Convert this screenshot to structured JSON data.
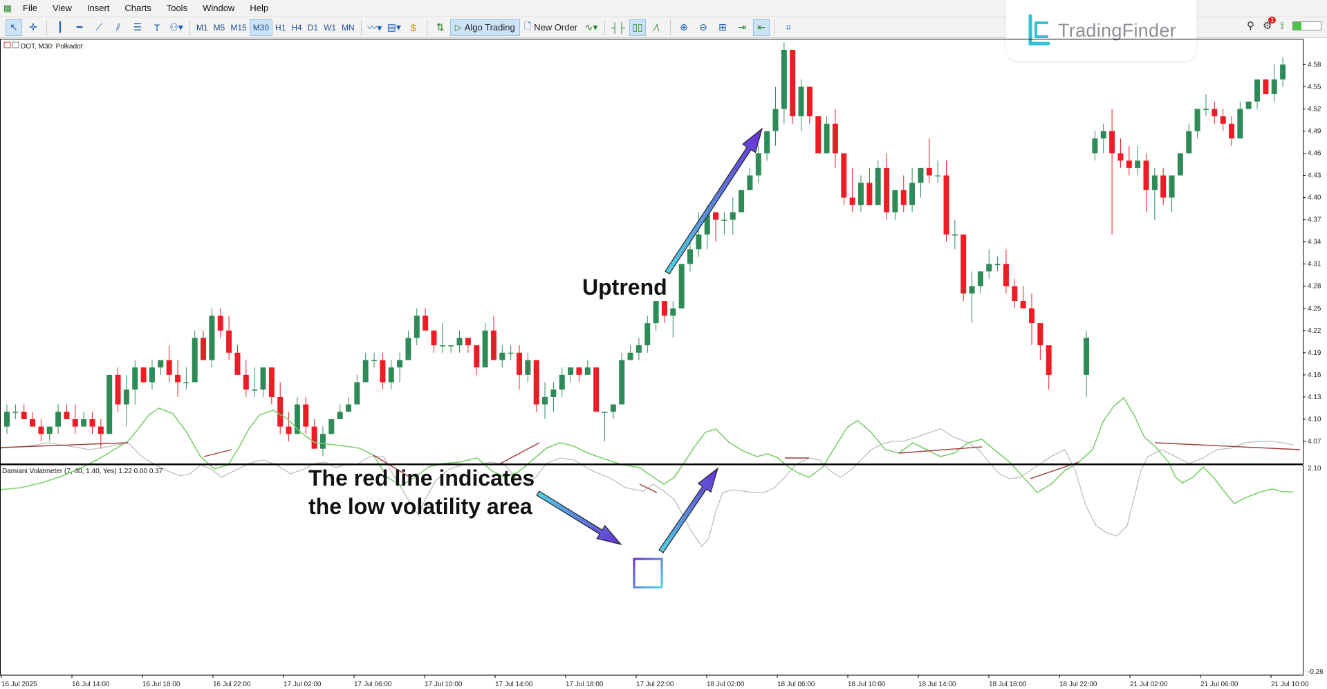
{
  "menu": {
    "items": [
      "File",
      "View",
      "Insert",
      "Charts",
      "Tools",
      "Window",
      "Help"
    ]
  },
  "toolbar": {
    "timeframes": [
      "M1",
      "M5",
      "M15",
      "M30",
      "H1",
      "H4",
      "D1",
      "W1",
      "MN"
    ],
    "active_timeframe": "M30",
    "algo_trading_label": "Algo Trading",
    "new_order_label": "New Order"
  },
  "logo": {
    "text": "TradingFinder"
  },
  "notification_count": "1",
  "chart": {
    "symbol_label": "DOT, M30: Polkadot",
    "price_axis": [
      "4.58",
      "4.55",
      "4.52",
      "4.49",
      "4.46",
      "4.43",
      "4.40",
      "4.37",
      "4.34",
      "4.31",
      "4.28",
      "4.25",
      "4.22",
      "4.19",
      "4.16",
      "4.13",
      "4.10",
      "4.07"
    ],
    "indicator_label": "Damiani Volatmeter (7, 40, 1.40, Yes) 1.22 0.00 0.37",
    "indicator_axis": [
      "2.10",
      "-0.26"
    ],
    "time_axis": [
      "16 Jul 2025",
      "16 Jul 14:00",
      "16 Jul 18:00",
      "16 Jul 22:00",
      "17 Jul 02:00",
      "17 Jul 06:00",
      "17 Jul 10:00",
      "17 Jul 14:00",
      "17 Jul 18:00",
      "17 Jul 22:00",
      "18 Jul 02:00",
      "18 Jul 06:00",
      "18 Jul 10:00",
      "18 Jul 14:00",
      "18 Jul 18:00",
      "18 Jul 22:00",
      "21 Jul 02:00",
      "21 Jul 06:00",
      "21 Jul 10:00"
    ]
  },
  "annotations": {
    "uptrend": "Uptrend",
    "note_line1": "The red line indicates",
    "note_line2": "the low volatility area"
  },
  "colors": {
    "bull": "#2e8b57",
    "bear": "#ee1c25",
    "volatility_line": "#7ad06a",
    "threshold_line": "#f4a8a8",
    "anti_line": "#bdbdbd",
    "low_vol_line": "#9c3b3b",
    "arrow_start": "#4ed6e6",
    "arrow_end": "#6a2fd4"
  },
  "chart_data": {
    "type": "candlestick",
    "symbol": "DOT",
    "timeframe": "M30",
    "candles": [
      [
        4.09,
        4.12,
        4.08,
        4.11
      ],
      [
        4.11,
        4.12,
        4.1,
        4.11
      ],
      [
        4.11,
        4.12,
        4.1,
        4.1
      ],
      [
        4.1,
        4.11,
        4.09,
        4.09
      ],
      [
        4.09,
        4.1,
        4.07,
        4.08
      ],
      [
        4.08,
        4.09,
        4.07,
        4.09
      ],
      [
        4.09,
        4.12,
        4.08,
        4.11
      ],
      [
        4.11,
        4.12,
        4.1,
        4.1
      ],
      [
        4.1,
        4.12,
        4.08,
        4.09
      ],
      [
        4.09,
        4.11,
        4.09,
        4.1
      ],
      [
        4.1,
        4.11,
        4.08,
        4.09
      ],
      [
        4.09,
        4.1,
        4.06,
        4.08
      ],
      [
        4.08,
        4.16,
        4.08,
        4.16
      ],
      [
        4.16,
        4.17,
        4.11,
        4.12
      ],
      [
        4.12,
        4.16,
        4.09,
        4.14
      ],
      [
        4.14,
        4.18,
        4.12,
        4.17
      ],
      [
        4.17,
        4.17,
        4.15,
        4.15
      ],
      [
        4.15,
        4.18,
        4.14,
        4.17
      ],
      [
        4.17,
        4.18,
        4.16,
        4.18
      ],
      [
        4.18,
        4.2,
        4.15,
        4.16
      ],
      [
        4.16,
        4.18,
        4.13,
        4.15
      ],
      [
        4.15,
        4.17,
        4.14,
        4.15
      ],
      [
        4.15,
        4.22,
        4.15,
        4.21
      ],
      [
        4.21,
        4.22,
        4.18,
        4.18
      ],
      [
        4.18,
        4.25,
        4.17,
        4.24
      ],
      [
        4.24,
        4.25,
        4.21,
        4.22
      ],
      [
        4.22,
        4.24,
        4.18,
        4.19
      ],
      [
        4.19,
        4.2,
        4.16,
        4.16
      ],
      [
        4.16,
        4.18,
        4.13,
        4.14
      ],
      [
        4.14,
        4.17,
        4.13,
        4.14
      ],
      [
        4.14,
        4.17,
        4.13,
        4.17
      ],
      [
        4.17,
        4.17,
        4.12,
        4.13
      ],
      [
        4.13,
        4.15,
        4.08,
        4.09
      ],
      [
        4.09,
        4.11,
        4.07,
        4.08
      ],
      [
        4.08,
        4.13,
        4.08,
        4.12
      ],
      [
        4.12,
        4.13,
        4.08,
        4.09
      ],
      [
        4.09,
        4.1,
        4.06,
        4.06
      ],
      [
        4.06,
        4.09,
        4.05,
        4.08
      ],
      [
        4.08,
        4.1,
        4.08,
        4.1
      ],
      [
        4.1,
        4.12,
        4.1,
        4.11
      ],
      [
        4.11,
        4.13,
        4.11,
        4.12
      ],
      [
        4.12,
        4.16,
        4.12,
        4.15
      ],
      [
        4.15,
        4.19,
        4.15,
        4.18
      ],
      [
        4.18,
        4.19,
        4.17,
        4.18
      ],
      [
        4.18,
        4.19,
        4.14,
        4.15
      ],
      [
        4.15,
        4.18,
        4.14,
        4.17
      ],
      [
        4.17,
        4.19,
        4.15,
        4.18
      ],
      [
        4.18,
        4.22,
        4.18,
        4.21
      ],
      [
        4.21,
        4.25,
        4.2,
        4.24
      ],
      [
        4.24,
        4.25,
        4.22,
        4.22
      ],
      [
        4.22,
        4.22,
        4.19,
        4.2
      ],
      [
        4.2,
        4.23,
        4.19,
        4.2
      ],
      [
        4.2,
        4.2,
        4.19,
        4.2
      ],
      [
        4.2,
        4.22,
        4.19,
        4.21
      ],
      [
        4.21,
        4.21,
        4.19,
        4.2
      ],
      [
        4.2,
        4.2,
        4.16,
        4.17
      ],
      [
        4.17,
        4.23,
        4.17,
        4.22
      ],
      [
        4.22,
        4.24,
        4.18,
        4.18
      ],
      [
        4.18,
        4.2,
        4.17,
        4.19
      ],
      [
        4.19,
        4.2,
        4.18,
        4.19
      ],
      [
        4.19,
        4.2,
        4.14,
        4.16
      ],
      [
        4.16,
        4.19,
        4.15,
        4.18
      ],
      [
        4.18,
        4.18,
        4.11,
        4.12
      ],
      [
        4.12,
        4.15,
        4.1,
        4.13
      ],
      [
        4.13,
        4.15,
        4.11,
        4.14
      ],
      [
        4.14,
        4.17,
        4.13,
        4.16
      ],
      [
        4.16,
        4.17,
        4.15,
        4.17
      ],
      [
        4.17,
        4.17,
        4.15,
        4.16
      ],
      [
        4.16,
        4.18,
        4.16,
        4.17
      ],
      [
        4.17,
        4.17,
        4.11,
        4.11
      ],
      [
        4.11,
        4.11,
        4.07,
        4.11
      ],
      [
        4.11,
        4.12,
        4.1,
        4.12
      ],
      [
        4.12,
        4.19,
        4.12,
        4.18
      ],
      [
        4.18,
        4.2,
        4.18,
        4.19
      ],
      [
        4.19,
        4.21,
        4.18,
        4.2
      ],
      [
        4.2,
        4.24,
        4.19,
        4.23
      ],
      [
        4.23,
        4.26,
        4.22,
        4.26
      ],
      [
        4.26,
        4.26,
        4.23,
        4.24
      ],
      [
        4.24,
        4.26,
        4.21,
        4.25
      ],
      [
        4.25,
        4.31,
        4.25,
        4.31
      ],
      [
        4.31,
        4.34,
        4.3,
        4.33
      ],
      [
        4.33,
        4.38,
        4.32,
        4.35
      ],
      [
        4.35,
        4.39,
        4.33,
        4.38
      ],
      [
        4.38,
        4.38,
        4.34,
        4.37
      ],
      [
        4.37,
        4.38,
        4.35,
        4.37
      ],
      [
        4.37,
        4.4,
        4.35,
        4.38
      ],
      [
        4.38,
        4.41,
        4.38,
        4.41
      ],
      [
        4.41,
        4.44,
        4.41,
        4.43
      ],
      [
        4.43,
        4.47,
        4.42,
        4.46
      ],
      [
        4.46,
        4.49,
        4.45,
        4.49
      ],
      [
        4.49,
        4.55,
        4.47,
        4.52
      ],
      [
        4.52,
        4.61,
        4.5,
        4.6
      ],
      [
        4.6,
        4.6,
        4.5,
        4.51
      ],
      [
        4.51,
        4.56,
        4.49,
        4.55
      ],
      [
        4.55,
        4.55,
        4.5,
        4.51
      ],
      [
        4.51,
        4.51,
        4.46,
        4.46
      ],
      [
        4.46,
        4.51,
        4.46,
        4.5
      ],
      [
        4.5,
        4.52,
        4.44,
        4.46
      ],
      [
        4.46,
        4.46,
        4.39,
        4.4
      ],
      [
        4.4,
        4.44,
        4.38,
        4.39
      ],
      [
        4.39,
        4.43,
        4.38,
        4.42
      ],
      [
        4.42,
        4.44,
        4.39,
        4.39
      ],
      [
        4.39,
        4.45,
        4.39,
        4.44
      ],
      [
        4.44,
        4.46,
        4.37,
        4.38
      ],
      [
        4.38,
        4.41,
        4.37,
        4.41
      ],
      [
        4.41,
        4.43,
        4.38,
        4.39
      ],
      [
        4.39,
        4.44,
        4.38,
        4.42
      ],
      [
        4.42,
        4.44,
        4.4,
        4.44
      ],
      [
        4.44,
        4.48,
        4.42,
        4.43
      ],
      [
        4.43,
        4.45,
        4.42,
        4.43
      ],
      [
        4.43,
        4.45,
        4.34,
        4.35
      ],
      [
        4.35,
        4.37,
        4.33,
        4.35
      ],
      [
        4.35,
        4.35,
        4.26,
        4.27
      ],
      [
        4.27,
        4.3,
        4.23,
        4.28
      ],
      [
        4.28,
        4.3,
        4.27,
        4.3
      ],
      [
        4.3,
        4.33,
        4.29,
        4.31
      ],
      [
        4.31,
        4.32,
        4.3,
        4.31
      ],
      [
        4.31,
        4.33,
        4.27,
        4.28
      ],
      [
        4.28,
        4.29,
        4.25,
        4.26
      ],
      [
        4.26,
        4.28,
        4.25,
        4.25
      ],
      [
        4.25,
        4.27,
        4.2,
        4.23
      ],
      [
        4.23,
        4.23,
        4.18,
        4.2
      ],
      [
        4.2,
        4.2,
        4.14,
        4.16
      ],
      [
        4.16,
        4.22,
        4.13,
        4.21
      ],
      [
        4.46,
        4.49,
        4.45,
        4.48
      ],
      [
        4.48,
        4.5,
        4.46,
        4.49
      ],
      [
        4.49,
        4.52,
        4.35,
        4.46
      ],
      [
        4.46,
        4.48,
        4.44,
        4.45
      ],
      [
        4.45,
        4.47,
        4.43,
        4.44
      ],
      [
        4.44,
        4.47,
        4.43,
        4.45
      ],
      [
        4.45,
        4.46,
        4.38,
        4.41
      ],
      [
        4.41,
        4.44,
        4.37,
        4.43
      ],
      [
        4.43,
        4.44,
        4.39,
        4.4
      ],
      [
        4.4,
        4.43,
        4.38,
        4.43
      ],
      [
        4.43,
        4.46,
        4.43,
        4.46
      ],
      [
        4.46,
        4.5,
        4.46,
        4.49
      ],
      [
        4.49,
        4.52,
        4.48,
        4.52
      ],
      [
        4.52,
        4.54,
        4.51,
        4.52
      ],
      [
        4.52,
        4.53,
        4.5,
        4.51
      ],
      [
        4.51,
        4.52,
        4.49,
        4.5
      ],
      [
        4.5,
        4.51,
        4.47,
        4.48
      ],
      [
        4.48,
        4.53,
        4.48,
        4.52
      ],
      [
        4.52,
        4.53,
        4.52,
        4.53
      ],
      [
        4.53,
        4.56,
        4.52,
        4.56
      ],
      [
        4.56,
        4.56,
        4.54,
        4.54
      ],
      [
        4.54,
        4.58,
        4.53,
        4.56
      ],
      [
        4.56,
        4.59,
        4.55,
        4.58
      ]
    ],
    "indicator": {
      "name": "Damiani Volatmeter",
      "params": "(7, 40, 1.40, Yes)",
      "values": [
        1.22,
        0.0,
        0.37
      ],
      "ylim": [
        -0.26,
        2.1
      ]
    }
  }
}
